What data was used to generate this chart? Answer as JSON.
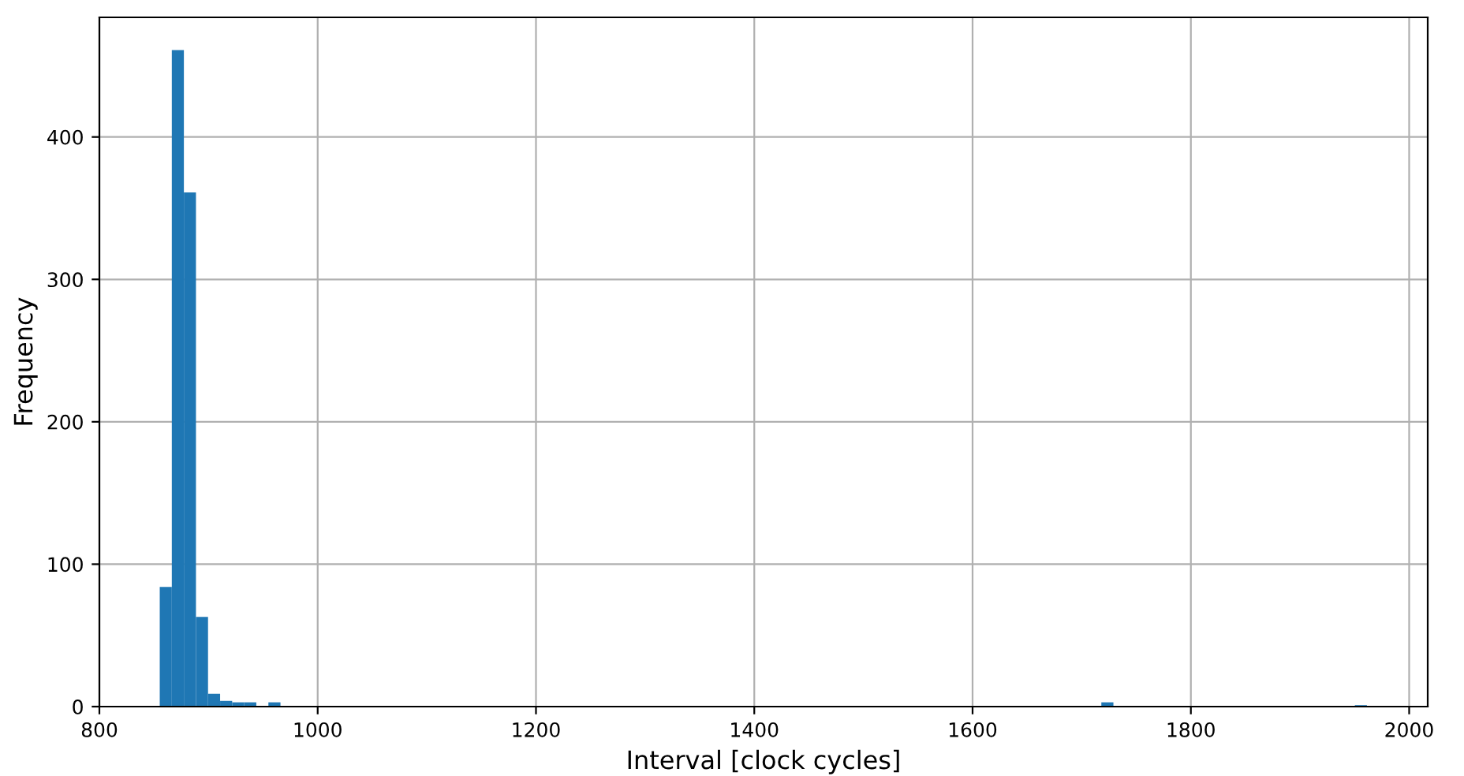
{
  "chart_data": {
    "type": "histogram",
    "xlabel": "Interval [clock cycles]",
    "ylabel": "Frequency",
    "bins": [
      855.3,
      866.36,
      877.42,
      888.48,
      899.54,
      910.6,
      921.66,
      932.72,
      943.78,
      954.84,
      965.9,
      976.96,
      988.02,
      999.08,
      1010.14,
      1021.2,
      1032.26,
      1043.32,
      1054.38,
      1065.44,
      1076.5,
      1087.56,
      1098.62,
      1109.68,
      1120.74,
      1131.8,
      1142.86,
      1153.92,
      1164.98,
      1176.04,
      1187.1,
      1198.16,
      1209.22,
      1220.28,
      1231.34,
      1242.4,
      1253.46,
      1264.52,
      1275.58,
      1286.64,
      1297.7,
      1308.76,
      1319.82,
      1330.88,
      1341.94,
      1353.0,
      1364.06,
      1375.12,
      1386.18,
      1397.24,
      1408.3,
      1419.36,
      1430.42,
      1441.48,
      1452.54,
      1463.6,
      1474.66,
      1485.72,
      1496.78,
      1507.84,
      1518.9,
      1529.96,
      1541.02,
      1552.08,
      1563.14,
      1574.2,
      1585.26,
      1596.32,
      1607.38,
      1618.44,
      1629.5,
      1640.56,
      1651.62,
      1662.68,
      1673.74,
      1684.8,
      1695.86,
      1706.92,
      1717.98,
      1729.04,
      1740.1,
      1751.16,
      1762.22,
      1773.28,
      1784.34,
      1795.4,
      1806.46,
      1817.52,
      1828.58,
      1839.64,
      1850.7,
      1861.76,
      1872.82,
      1883.88,
      1894.94,
      1906.0,
      1917.06,
      1928.12,
      1939.18,
      1950.24,
      1961.3
    ],
    "values": [
      84,
      461,
      361,
      63,
      9,
      4,
      3,
      3,
      0,
      3,
      0,
      0,
      0,
      0,
      0,
      0,
      0,
      0,
      0,
      0,
      0,
      0,
      0,
      0,
      0,
      0,
      0,
      0,
      0,
      0,
      0,
      0,
      0,
      0,
      0,
      0,
      0,
      0,
      0,
      0,
      0,
      0,
      0,
      0,
      0,
      0,
      0,
      0,
      0,
      0,
      0,
      0,
      0,
      0,
      0,
      0,
      0,
      0,
      0,
      0,
      0,
      0,
      0,
      0,
      0,
      0,
      0,
      0,
      0,
      0,
      0,
      0,
      0,
      0,
      0,
      0,
      0,
      0,
      3,
      0,
      0,
      0,
      0,
      0,
      0,
      0,
      0,
      0,
      0,
      0,
      0,
      0,
      0,
      0,
      0,
      0,
      0,
      0,
      0,
      1
    ],
    "color": "#1f77b4",
    "xlim": [
      800,
      2017
    ],
    "ylim": [
      0,
      484
    ],
    "xticks": [
      800,
      1000,
      1200,
      1400,
      1600,
      1800,
      2000
    ],
    "yticks": [
      0,
      100,
      200,
      300,
      400
    ],
    "grid": true
  }
}
